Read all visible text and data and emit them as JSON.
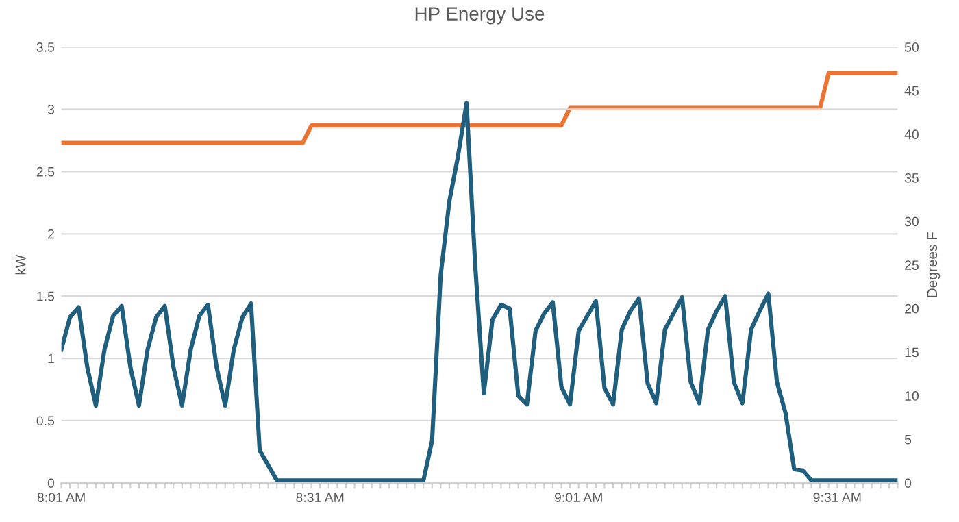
{
  "chart_data": {
    "type": "line",
    "title": "HP Energy Use",
    "ylabel": "kW",
    "y2label": "Degrees F",
    "categories": [
      "8:01 AM",
      null,
      null,
      null,
      null,
      null,
      null,
      null,
      null,
      null,
      null,
      null,
      null,
      null,
      null,
      null,
      null,
      null,
      null,
      null,
      null,
      null,
      null,
      null,
      null,
      null,
      null,
      null,
      null,
      null,
      "8:31 AM",
      null,
      null,
      null,
      null,
      null,
      null,
      null,
      null,
      null,
      null,
      null,
      null,
      null,
      null,
      null,
      null,
      null,
      null,
      null,
      null,
      null,
      null,
      null,
      null,
      null,
      null,
      null,
      null,
      null,
      "9:01 AM",
      null,
      null,
      null,
      null,
      null,
      null,
      null,
      null,
      null,
      null,
      null,
      null,
      null,
      null,
      null,
      null,
      null,
      null,
      null,
      null,
      null,
      null,
      null,
      null,
      null,
      null,
      null,
      null,
      null,
      "9:31 AM",
      null,
      null,
      null,
      null,
      null,
      null,
      null
    ],
    "series": [
      {
        "color": "#1f5f7d",
        "values": [
          1.07,
          1.33,
          1.41,
          0.93,
          0.62,
          1.07,
          1.34,
          1.42,
          0.93,
          0.62,
          1.07,
          1.33,
          1.42,
          0.93,
          0.62,
          1.07,
          1.34,
          1.43,
          0.93,
          0.62,
          1.07,
          1.33,
          1.44,
          0.26,
          0.14,
          0.02,
          0.02,
          0.02,
          0.02,
          0.02,
          0.02,
          0.02,
          0.02,
          0.02,
          0.02,
          0.02,
          0.02,
          0.02,
          0.02,
          0.02,
          0.02,
          0.02,
          0.02,
          0.34,
          1.67,
          2.26,
          2.62,
          3.05,
          1.75,
          0.72,
          1.31,
          1.43,
          1.4,
          0.7,
          0.63,
          1.22,
          1.36,
          1.45,
          0.77,
          0.63,
          1.22,
          1.34,
          1.46,
          0.76,
          0.63,
          1.23,
          1.38,
          1.48,
          0.8,
          0.64,
          1.23,
          1.36,
          1.49,
          0.81,
          0.64,
          1.23,
          1.38,
          1.5,
          0.81,
          0.64,
          1.23,
          1.38,
          1.52,
          0.81,
          0.56,
          0.11,
          0.1,
          0.02,
          0.02,
          0.02,
          0.02,
          0.02,
          0.02,
          0.02,
          0.02,
          0.02,
          0.02,
          0.02
        ]
      },
      {
        "color": "#ed7331",
        "axis": "y2",
        "values": [
          39,
          39,
          39,
          39,
          39,
          39,
          39,
          39,
          39,
          39,
          39,
          39,
          39,
          39,
          39,
          39,
          39,
          39,
          39,
          39,
          39,
          39,
          39,
          39,
          39,
          39,
          39,
          39,
          39,
          41,
          41,
          41,
          41,
          41,
          41,
          41,
          41,
          41,
          41,
          41,
          41,
          41,
          41,
          41,
          41,
          41,
          41,
          41,
          41,
          41,
          41,
          41,
          41,
          41,
          41,
          41,
          41,
          41,
          41,
          43,
          43,
          43,
          43,
          43,
          43,
          43,
          43,
          43,
          43,
          43,
          43,
          43,
          43,
          43,
          43,
          43,
          43,
          43,
          43,
          43,
          43,
          43,
          43,
          43,
          43,
          43,
          43,
          43,
          43,
          47,
          47,
          47,
          47,
          47,
          47,
          47,
          47,
          47
        ]
      }
    ],
    "ylim": [
      0,
      3.5
    ],
    "yticks": [
      0,
      0.5,
      1,
      1.5,
      2,
      2.5,
      3,
      3.5
    ],
    "y2lim": [
      0,
      50
    ],
    "y2ticks": [
      0,
      5,
      10,
      15,
      20,
      25,
      30,
      35,
      40,
      45,
      50
    ],
    "grid": "y",
    "marker": "none",
    "line_style": "solid"
  }
}
